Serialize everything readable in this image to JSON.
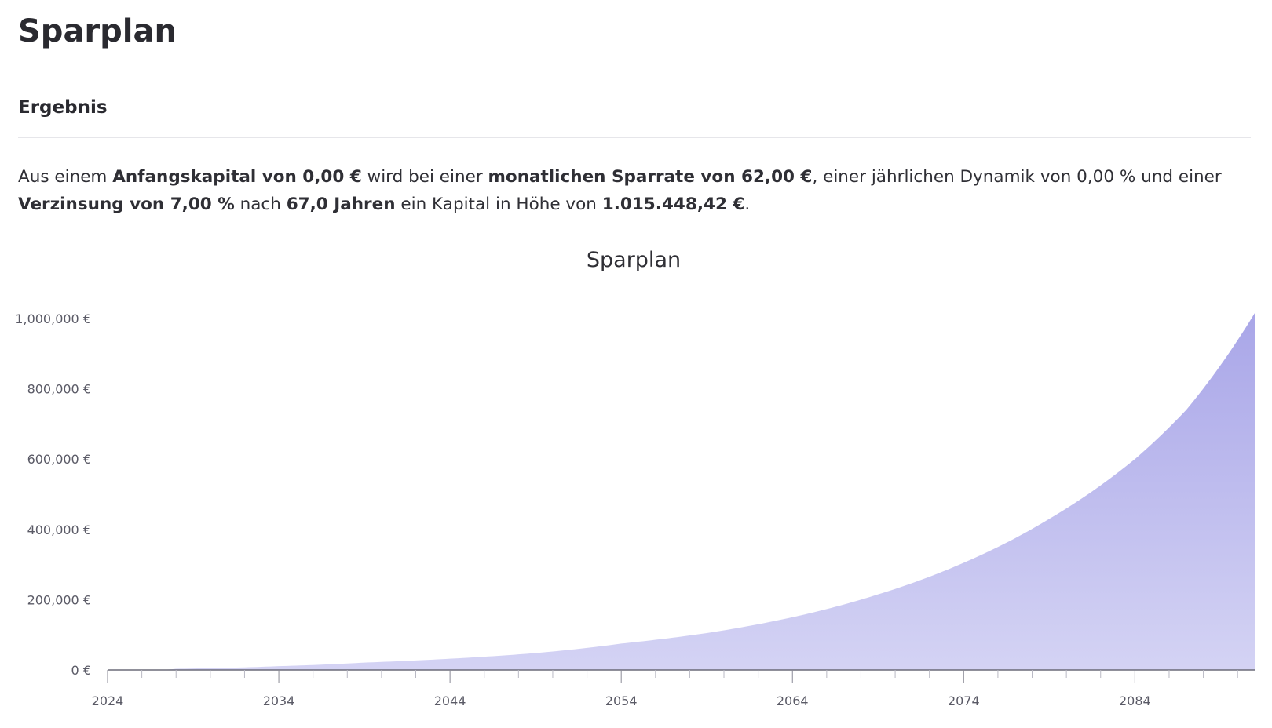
{
  "header": {
    "title": "Sparplan",
    "section_title": "Ergebnis"
  },
  "result": {
    "p1": "Aus einem ",
    "b1": "Anfangskapital von 0,00 €",
    "p2": " wird bei einer ",
    "b2": "monatlichen Sparrate von 62,00 €",
    "p3": ", einer jährlichen Dynamik von 0,00 % und einer ",
    "b3": "Verzinsung von 7,00 %",
    "p4": " nach ",
    "b4": "67,0 Jahren",
    "p5": " ein Kapital in Höhe von ",
    "b5": "1.015.448,42 €",
    "p6": "."
  },
  "colors": {
    "area_top": "#a9a6e8",
    "area_bottom": "#d4d3f4",
    "axis": "#6b6b78",
    "text": "#2f2f35"
  },
  "chart_data": {
    "type": "area",
    "title": "Sparplan",
    "xlabel": "",
    "ylabel": "",
    "xlim": [
      2024,
      2091
    ],
    "ylim": [
      0,
      1000000
    ],
    "x_ticks": [
      2024,
      2034,
      2044,
      2054,
      2064,
      2074,
      2084
    ],
    "x_tick_labels": [
      "2024",
      "2034",
      "2044",
      "2054",
      "2064",
      "2074",
      "2084"
    ],
    "y_ticks": [
      0,
      200000,
      400000,
      600000,
      800000,
      1000000
    ],
    "y_tick_labels": [
      "0 €",
      "200,000 €",
      "400,000 €",
      "600,000 €",
      "800,000 €",
      "1,000,000 €"
    ],
    "grid": false,
    "legend": "none",
    "series": [
      {
        "x": [
          2024,
          2028,
          2034,
          2039,
          2044,
          2049,
          2054,
          2059,
          2064,
          2069,
          2074,
          2079,
          2084,
          2087,
          2091
        ],
        "values": [
          0,
          3400,
          10800,
          21000,
          32000,
          48000,
          75000,
          105000,
          150000,
          215000,
          305000,
          430000,
          600000,
          740000,
          1015448
        ]
      }
    ]
  }
}
